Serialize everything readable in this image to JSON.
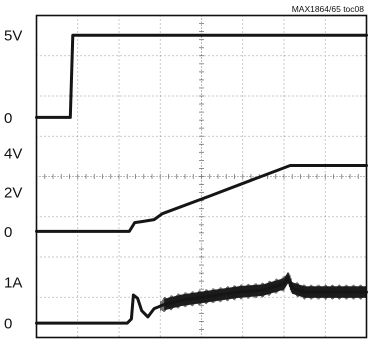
{
  "caption": "MAX1864/65 toc08",
  "chart_data": {
    "type": "line",
    "title": "",
    "xlabel": "",
    "ylabel": "",
    "grid": true,
    "x_divisions": 8,
    "y_divisions": 8,
    "x_domain": [
      0,
      8
    ],
    "channels": [
      {
        "labels": [
          {
            "text": "5V",
            "value": 5
          },
          {
            "text": "0",
            "value": 0
          }
        ],
        "ylim": [
          -1.25,
          6.2
        ],
        "points": [
          [
            0.0,
            0.0
          ],
          [
            0.82,
            0.0
          ],
          [
            0.88,
            5.0
          ],
          [
            8.0,
            5.0
          ]
        ]
      },
      {
        "labels": [
          {
            "text": "4V",
            "value": 4
          },
          {
            "text": "2V",
            "value": 2
          },
          {
            "text": "0",
            "value": 0
          }
        ],
        "ylim": [
          -1.3,
          4.75
        ],
        "points": [
          [
            0.0,
            0.0
          ],
          [
            2.25,
            0.0
          ],
          [
            2.38,
            0.45
          ],
          [
            2.55,
            0.5
          ],
          [
            2.85,
            0.6
          ],
          [
            3.05,
            0.9
          ],
          [
            4.2,
            1.8
          ],
          [
            5.2,
            2.6
          ],
          [
            6.15,
            3.35
          ],
          [
            8.0,
            3.35
          ]
        ]
      },
      {
        "labels": [
          {
            "text": "1A",
            "value": 1
          },
          {
            "text": "0",
            "value": 0
          }
        ],
        "ylim": [
          -0.35,
          1.6
        ],
        "points": [
          [
            0.0,
            0.0
          ],
          [
            2.2,
            0.0
          ],
          [
            2.3,
            0.1
          ],
          [
            2.35,
            0.68
          ],
          [
            2.45,
            0.6
          ],
          [
            2.55,
            0.3
          ],
          [
            2.7,
            0.15
          ],
          [
            2.85,
            0.35
          ],
          [
            3.1,
            0.45
          ],
          [
            3.5,
            0.55
          ],
          [
            4.2,
            0.65
          ],
          [
            4.9,
            0.75
          ],
          [
            5.5,
            0.8
          ],
          [
            6.0,
            0.95
          ],
          [
            6.1,
            1.1
          ],
          [
            6.2,
            0.85
          ],
          [
            6.5,
            0.75
          ],
          [
            8.0,
            0.75
          ]
        ],
        "noise_band": {
          "x_from": 3.0,
          "x_to": 8.0,
          "half_width": 0.14
        }
      }
    ]
  },
  "colors": {
    "trace": "#151515",
    "grid": "#777777",
    "frame": "#111111",
    "background": "#ffffff"
  }
}
